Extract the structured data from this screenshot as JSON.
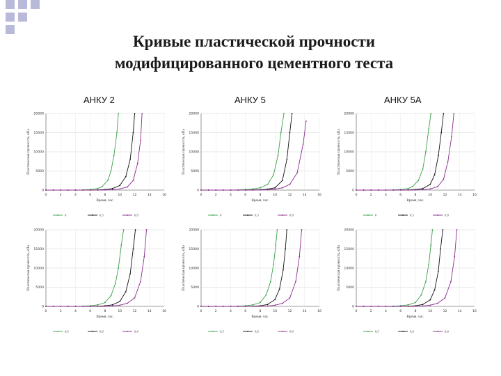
{
  "page": {
    "title_line1": "Кривые пластической прочности",
    "title_line2": "модифицированного цементного теста",
    "columns": [
      "АНКУ 2",
      "АНКУ 5",
      "АНКУ 5А"
    ]
  },
  "colors": {
    "decor_squares": "#b9b9d9",
    "series_colors": [
      "#3aa048",
      "#111111",
      "#8a2a8e"
    ]
  },
  "chart_data": [
    {
      "type": "line",
      "panel": "row1-col1",
      "xlim": [
        0,
        16
      ],
      "ylim": [
        0,
        20000
      ],
      "xticks": [
        "0",
        "2",
        "4",
        "6",
        "8",
        "10",
        "12",
        "14",
        "16"
      ],
      "yticks": [
        "0",
        "5000",
        "10000",
        "15000",
        "20000"
      ],
      "xlabel": "Время, час.",
      "ylabel": "Пластическая прочность, кПа",
      "legend": [
        "0",
        "0,5",
        "0,8"
      ],
      "series": [
        {
          "name": "0",
          "x": [
            0,
            1,
            2,
            3,
            4,
            5,
            6,
            7,
            7.6,
            8.4,
            8.8,
            9.2,
            9.6,
            9.8
          ],
          "y": [
            0,
            0,
            0,
            0,
            0,
            50,
            150,
            400,
            900,
            2600,
            5000,
            9000,
            15000,
            20000
          ]
        },
        {
          "name": "0,5",
          "x": [
            0,
            1,
            2,
            3,
            4,
            5,
            6,
            7,
            8,
            9,
            10,
            10.8,
            11.4,
            11.8,
            12
          ],
          "y": [
            0,
            0,
            0,
            0,
            0,
            0,
            0,
            50,
            150,
            400,
            1200,
            3500,
            8000,
            15000,
            20000
          ]
        },
        {
          "name": "0,8",
          "x": [
            0,
            1,
            2,
            3,
            4,
            5,
            6,
            7,
            8,
            9,
            10,
            11,
            11.8,
            12.4,
            12.8,
            13
          ],
          "y": [
            0,
            0,
            0,
            0,
            0,
            0,
            0,
            0,
            40,
            100,
            300,
            800,
            2500,
            7000,
            13000,
            20000
          ]
        }
      ]
    },
    {
      "type": "line",
      "panel": "row1-col2",
      "xlim": [
        0,
        16
      ],
      "ylim": [
        0,
        20000
      ],
      "xticks": [
        "0",
        "2",
        "4",
        "6",
        "8",
        "10",
        "12",
        "14",
        "16"
      ],
      "yticks": [
        "0",
        "5000",
        "10000",
        "15000",
        "20000"
      ],
      "xlabel": "Время, час.",
      "ylabel": "Пластическая прочность, кПа",
      "legend": [
        "0",
        "0,5",
        "0,8"
      ],
      "series": [
        {
          "name": "0",
          "x": [
            0,
            1,
            2,
            3,
            4,
            5,
            6,
            7,
            8,
            9,
            9.8,
            10.4,
            10.8,
            11.2
          ],
          "y": [
            0,
            0,
            0,
            0,
            0,
            50,
            150,
            300,
            600,
            1500,
            4000,
            9000,
            15000,
            20000
          ]
        },
        {
          "name": "0,5",
          "x": [
            0,
            1,
            2,
            3,
            4,
            5,
            6,
            7,
            8,
            9,
            10,
            11,
            11.6,
            12,
            12.3
          ],
          "y": [
            0,
            0,
            0,
            0,
            0,
            0,
            0,
            50,
            100,
            250,
            600,
            2500,
            8000,
            15000,
            20000
          ]
        },
        {
          "name": "0,8",
          "x": [
            0,
            1,
            2,
            3,
            4,
            5,
            6,
            7,
            8,
            9,
            10,
            11,
            12,
            13,
            13.8,
            14.2
          ],
          "y": [
            0,
            0,
            0,
            0,
            0,
            0,
            0,
            0,
            40,
            100,
            250,
            600,
            1500,
            4500,
            12000,
            18000
          ]
        }
      ]
    },
    {
      "type": "line",
      "panel": "row1-col3",
      "xlim": [
        0,
        16
      ],
      "ylim": [
        0,
        20000
      ],
      "xticks": [
        "0",
        "2",
        "4",
        "6",
        "8",
        "10",
        "12",
        "14",
        "16"
      ],
      "yticks": [
        "0",
        "5000",
        "10000",
        "15000",
        "20000"
      ],
      "xlabel": "Время, час.",
      "ylabel": "Пластическая прочность, кПа",
      "legend": [
        "0",
        "0,5",
        "0,8"
      ],
      "series": [
        {
          "name": "0",
          "x": [
            0,
            1,
            2,
            3,
            4,
            5,
            6,
            7,
            7.6,
            8.4,
            9,
            9.4,
            9.8,
            10.1
          ],
          "y": [
            0,
            0,
            0,
            0,
            0,
            50,
            150,
            400,
            900,
            2500,
            5500,
            10000,
            16000,
            20000
          ]
        },
        {
          "name": "0,5",
          "x": [
            0,
            1,
            2,
            3,
            4,
            5,
            6,
            7,
            8,
            9,
            10,
            10.6,
            11.1,
            11.5,
            11.8
          ],
          "y": [
            0,
            0,
            0,
            0,
            0,
            0,
            0,
            50,
            150,
            400,
            1500,
            4000,
            9000,
            15000,
            20000
          ]
        },
        {
          "name": "0,8",
          "x": [
            0,
            1,
            2,
            3,
            4,
            5,
            6,
            7,
            8,
            9,
            10,
            11,
            11.8,
            12.4,
            12.9,
            13.2
          ],
          "y": [
            0,
            0,
            0,
            0,
            0,
            0,
            0,
            0,
            40,
            100,
            300,
            900,
            2800,
            7500,
            14000,
            20000
          ]
        }
      ]
    },
    {
      "type": "line",
      "panel": "row2-col1",
      "xlim": [
        0,
        16
      ],
      "ylim": [
        0,
        20000
      ],
      "xticks": [
        "0",
        "2",
        "4",
        "6",
        "8",
        "10",
        "12",
        "14",
        "16"
      ],
      "yticks": [
        "0",
        "5000",
        "10000",
        "15000",
        "20000"
      ],
      "xlabel": "Время, час.",
      "ylabel": "Пластическая прочность, кПа",
      "legend": [
        "0,5",
        "0,6",
        "0,8"
      ],
      "series": [
        {
          "name": "0,5",
          "x": [
            0,
            1,
            2,
            3,
            4,
            5,
            6,
            7,
            8,
            8.8,
            9.4,
            9.8,
            10.2,
            10.5
          ],
          "y": [
            0,
            0,
            0,
            0,
            0,
            50,
            150,
            400,
            1000,
            2800,
            6000,
            10000,
            16000,
            20000
          ]
        },
        {
          "name": "0,6",
          "x": [
            0,
            1,
            2,
            3,
            4,
            5,
            6,
            7,
            8,
            9,
            10,
            10.8,
            11.4,
            11.8,
            12.1
          ],
          "y": [
            0,
            0,
            0,
            0,
            0,
            0,
            0,
            50,
            150,
            400,
            1300,
            3800,
            8500,
            15000,
            20000
          ]
        },
        {
          "name": "0,8",
          "x": [
            0,
            1,
            2,
            3,
            4,
            5,
            6,
            7,
            8,
            9,
            10,
            11,
            12,
            12.8,
            13.3,
            13.6
          ],
          "y": [
            0,
            0,
            0,
            0,
            0,
            0,
            0,
            0,
            40,
            100,
            300,
            800,
            2200,
            6500,
            13000,
            20000
          ]
        }
      ]
    },
    {
      "type": "line",
      "panel": "row2-col2",
      "xlim": [
        0,
        16
      ],
      "ylim": [
        0,
        20000
      ],
      "xticks": [
        "0",
        "2",
        "4",
        "6",
        "8",
        "10",
        "12",
        "14",
        "16"
      ],
      "yticks": [
        "0",
        "5000",
        "10000",
        "15000",
        "20000"
      ],
      "xlabel": "Время, час.",
      "ylabel": "Пластическая прочность, кПа",
      "legend": [
        "0,5",
        "0,6",
        "0,8"
      ],
      "series": [
        {
          "name": "0,5",
          "x": [
            0,
            1,
            2,
            3,
            4,
            5,
            6,
            7,
            8,
            8.8,
            9.4,
            9.8,
            10.1,
            10.3
          ],
          "y": [
            0,
            0,
            0,
            0,
            0,
            50,
            150,
            400,
            1000,
            3000,
            6500,
            11000,
            16000,
            20000
          ]
        },
        {
          "name": "0,6",
          "x": [
            0,
            1,
            2,
            3,
            4,
            5,
            6,
            7,
            8,
            9,
            10,
            10.6,
            11.1,
            11.4,
            11.6
          ],
          "y": [
            0,
            0,
            0,
            0,
            0,
            0,
            0,
            50,
            150,
            500,
            1800,
            4500,
            9500,
            15000,
            20000
          ]
        },
        {
          "name": "0,8",
          "x": [
            0,
            1,
            2,
            3,
            4,
            5,
            6,
            7,
            8,
            9,
            10,
            11,
            12,
            12.8,
            13.3,
            13.6
          ],
          "y": [
            0,
            0,
            0,
            0,
            0,
            0,
            0,
            0,
            40,
            100,
            300,
            800,
            2200,
            6500,
            13000,
            20000
          ]
        }
      ]
    },
    {
      "type": "line",
      "panel": "row2-col3",
      "xlim": [
        0,
        16
      ],
      "ylim": [
        0,
        20000
      ],
      "xticks": [
        "0",
        "2",
        "4",
        "6",
        "8",
        "10",
        "12",
        "14",
        "16"
      ],
      "yticks": [
        "0",
        "5000",
        "10000",
        "15000",
        "20000"
      ],
      "xlabel": "Время, час.",
      "ylabel": "Пластическая прочность, кПа",
      "legend": [
        "0,5",
        "0,6",
        "0,8"
      ],
      "series": [
        {
          "name": "0,5",
          "x": [
            0,
            1,
            2,
            3,
            4,
            5,
            6,
            7,
            8,
            8.8,
            9.4,
            9.8,
            10.1,
            10.3
          ],
          "y": [
            0,
            0,
            0,
            0,
            0,
            50,
            150,
            400,
            1000,
            3000,
            6500,
            11000,
            16000,
            20000
          ]
        },
        {
          "name": "0,6",
          "x": [
            0,
            1,
            2,
            3,
            4,
            5,
            6,
            7,
            8,
            9,
            10,
            10.6,
            11.1,
            11.4,
            11.7
          ],
          "y": [
            0,
            0,
            0,
            0,
            0,
            0,
            0,
            50,
            150,
            500,
            1700,
            4300,
            9200,
            15000,
            20000
          ]
        },
        {
          "name": "0,8",
          "x": [
            0,
            1,
            2,
            3,
            4,
            5,
            6,
            7,
            8,
            9,
            10,
            11,
            12,
            12.8,
            13.3,
            13.6
          ],
          "y": [
            0,
            0,
            0,
            0,
            0,
            0,
            0,
            0,
            40,
            100,
            300,
            800,
            2200,
            6500,
            13000,
            20000
          ]
        }
      ]
    }
  ]
}
